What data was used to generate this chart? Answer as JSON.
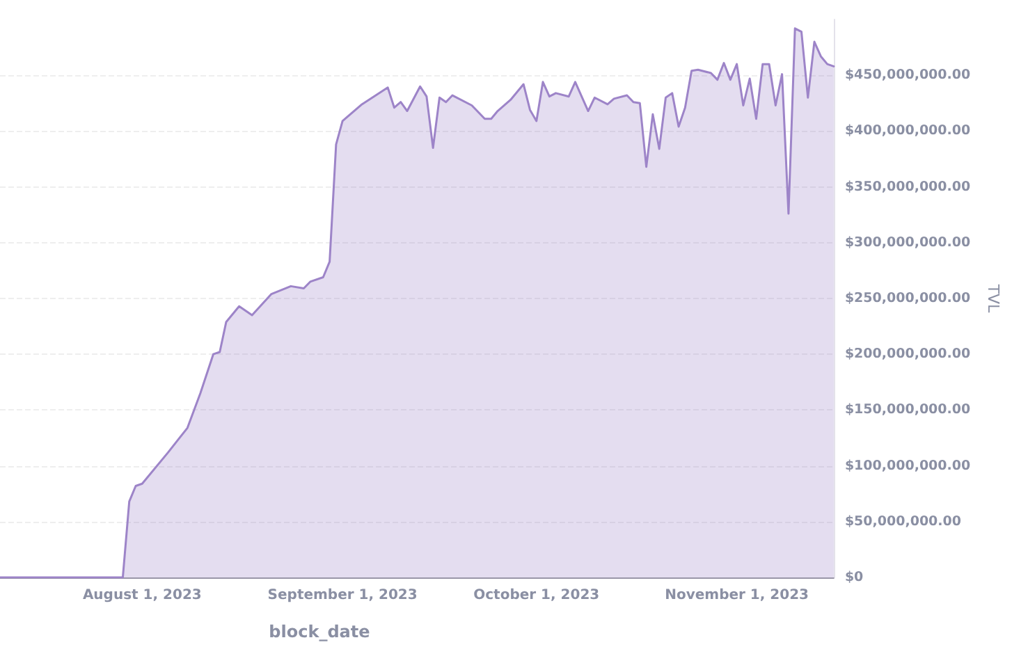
{
  "chart_data": {
    "type": "area",
    "xlabel": "block_date",
    "ylabel": "TVL",
    "x": [
      "2023-07-10",
      "2023-07-29",
      "2023-07-30",
      "2023-07-31",
      "2023-08-01",
      "2023-08-05",
      "2023-08-08",
      "2023-08-10",
      "2023-08-12",
      "2023-08-13",
      "2023-08-14",
      "2023-08-16",
      "2023-08-18",
      "2023-08-21",
      "2023-08-24",
      "2023-08-26",
      "2023-08-27",
      "2023-08-29",
      "2023-08-30",
      "2023-08-31",
      "2023-09-01",
      "2023-09-04",
      "2023-09-08",
      "2023-09-09",
      "2023-09-10",
      "2023-09-11",
      "2023-09-13",
      "2023-09-14",
      "2023-09-15",
      "2023-09-16",
      "2023-09-17",
      "2023-09-18",
      "2023-09-21",
      "2023-09-23",
      "2023-09-24",
      "2023-09-25",
      "2023-09-27",
      "2023-09-29",
      "2023-09-30",
      "2023-10-01",
      "2023-10-02",
      "2023-10-03",
      "2023-10-04",
      "2023-10-06",
      "2023-10-07",
      "2023-10-09",
      "2023-10-10",
      "2023-10-12",
      "2023-10-13",
      "2023-10-15",
      "2023-10-16",
      "2023-10-17",
      "2023-10-18",
      "2023-10-19",
      "2023-10-20",
      "2023-10-21",
      "2023-10-22",
      "2023-10-23",
      "2023-10-24",
      "2023-10-25",
      "2023-10-26",
      "2023-10-28",
      "2023-10-29",
      "2023-10-30",
      "2023-10-31",
      "2023-11-01",
      "2023-11-02",
      "2023-11-03",
      "2023-11-04",
      "2023-11-05",
      "2023-11-06",
      "2023-11-07",
      "2023-11-08",
      "2023-11-09",
      "2023-11-10",
      "2023-11-11",
      "2023-11-12",
      "2023-11-13",
      "2023-11-14",
      "2023-11-15",
      "2023-11-16"
    ],
    "series": [
      {
        "color": "#9d84c8",
        "values": [
          0,
          0,
          68000000,
          82000000,
          84000000,
          112000000,
          134000000,
          165000000,
          200000000,
          202000000,
          229000000,
          243000000,
          235000000,
          254000000,
          261000000,
          259000000,
          265000000,
          269000000,
          283000000,
          388000000,
          409000000,
          424000000,
          439000000,
          421000000,
          426000000,
          418000000,
          440000000,
          431000000,
          385000000,
          430000000,
          426000000,
          432000000,
          423000000,
          411000000,
          411000000,
          418000000,
          428000000,
          442000000,
          419000000,
          409000000,
          444000000,
          431000000,
          434000000,
          431000000,
          444000000,
          418000000,
          430000000,
          424000000,
          429000000,
          432000000,
          426000000,
          425000000,
          368000000,
          415000000,
          384000000,
          430000000,
          434000000,
          404000000,
          421000000,
          454000000,
          455000000,
          452000000,
          446000000,
          461000000,
          446000000,
          460000000,
          423000000,
          447000000,
          411000000,
          460000000,
          460000000,
          423000000,
          451000000,
          326000000,
          492000000,
          489000000,
          430000000,
          480000000,
          467000000,
          460000000,
          458000000
        ]
      }
    ],
    "xlim": [
      "2023-07-10",
      "2023-11-16"
    ],
    "xticks": [
      {
        "value": "2023-08-01",
        "label": "August 1, 2023"
      },
      {
        "value": "2023-09-01",
        "label": "September 1, 2023"
      },
      {
        "value": "2023-10-01",
        "label": "October 1, 2023"
      },
      {
        "value": "2023-11-01",
        "label": "November 1, 2023"
      }
    ],
    "ylim": [
      0,
      500000000
    ],
    "yticks": [
      {
        "value": 0,
        "label": "$0"
      },
      {
        "value": 50000000,
        "label": "$50,000,000.00"
      },
      {
        "value": 100000000,
        "label": "$100,000,000.00"
      },
      {
        "value": 150000000,
        "label": "$150,000,000.00"
      },
      {
        "value": 200000000,
        "label": "$200,000,000.00"
      },
      {
        "value": 250000000,
        "label": "$250,000,000.00"
      },
      {
        "value": 300000000,
        "label": "$300,000,000.00"
      },
      {
        "value": 350000000,
        "label": "$350,000,000.00"
      },
      {
        "value": 400000000,
        "label": "$400,000,000.00"
      },
      {
        "value": 450000000,
        "label": "$450,000,000.00"
      }
    ],
    "grid": "y",
    "marker": "none",
    "line_style": "solid"
  }
}
